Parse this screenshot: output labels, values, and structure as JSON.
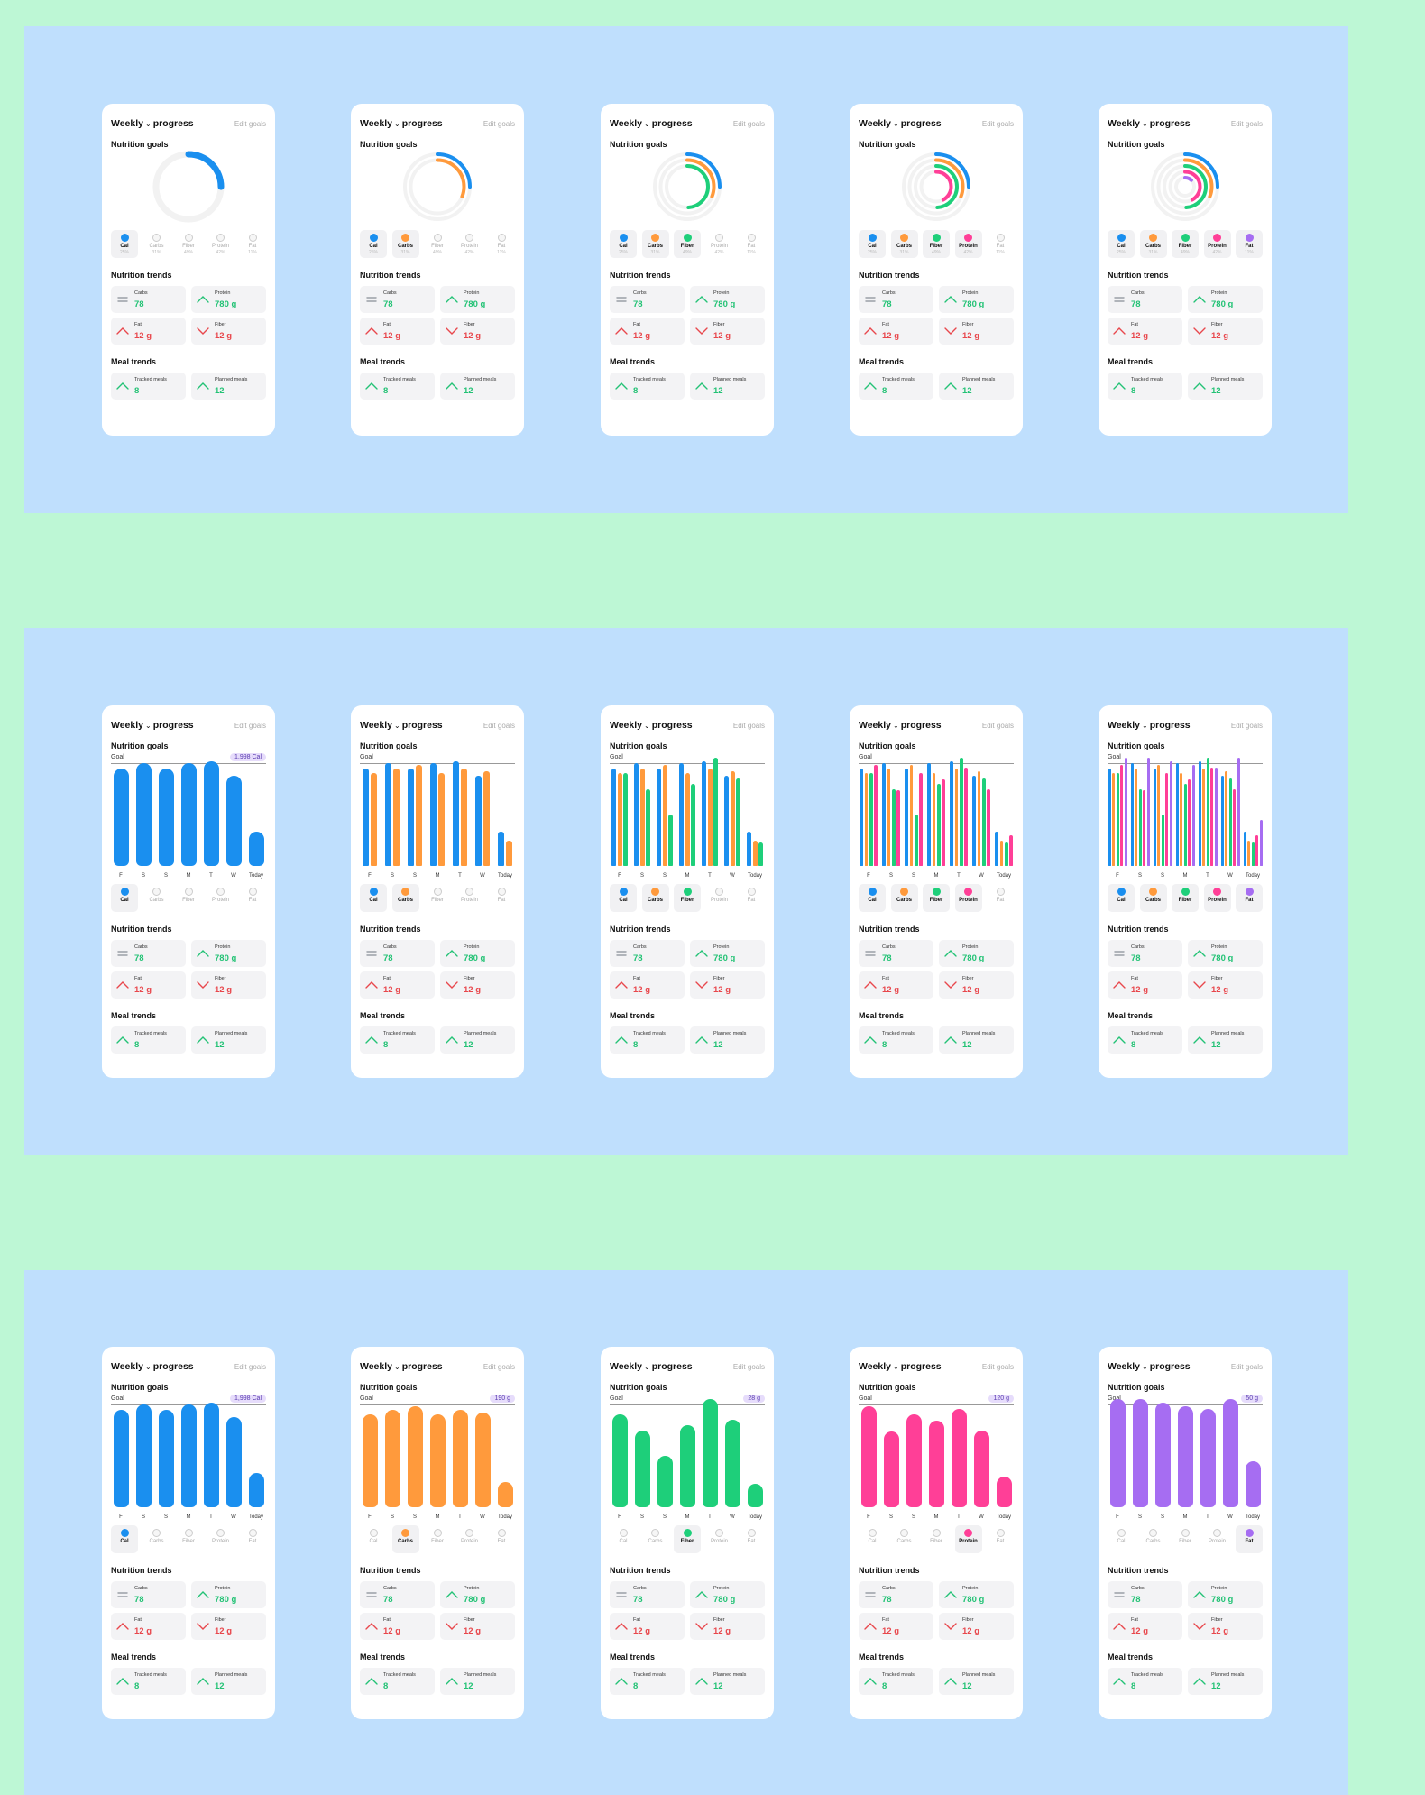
{
  "card": {
    "title_a": "Weekly",
    "title_b": "progress",
    "edit": "Edit goals",
    "nutrition_goals": "Nutrition goals",
    "nutrition_trends": "Nutrition trends",
    "meal_trends": "Meal trends",
    "goal": "Goal",
    "days": [
      "F",
      "S",
      "S",
      "M",
      "T",
      "W",
      "Today"
    ]
  },
  "nutrients": [
    {
      "name": "Cal",
      "pct": "25%",
      "color": "#1a8fef"
    },
    {
      "name": "Carbs",
      "pct": "31%",
      "color": "#ff9a3c"
    },
    {
      "name": "Fiber",
      "pct": "49%",
      "color": "#1ecf7a"
    },
    {
      "name": "Protein",
      "pct": "42%",
      "color": "#ff3f97"
    },
    {
      "name": "Fat",
      "pct": "11%",
      "color": "#a66df2"
    }
  ],
  "trends": [
    {
      "label": "Carbs",
      "value": "78",
      "trend": "flat",
      "tone": "g"
    },
    {
      "label": "Protein",
      "value": "780 g",
      "trend": "up",
      "tone": "g"
    },
    {
      "label": "Fat",
      "value": "12 g",
      "trend": "up",
      "tone": "r"
    },
    {
      "label": "Fiber",
      "value": "12 g",
      "trend": "down",
      "tone": "r"
    }
  ],
  "meals": [
    {
      "label": "Tracked meals",
      "value": "8",
      "trend": "up",
      "tone": "g"
    },
    {
      "label": "Planned meals",
      "value": "12",
      "trend": "up",
      "tone": "g"
    }
  ],
  "goal_pills": [
    "1,998 Cal",
    "190 g",
    "28 g",
    "120 g",
    "50 g"
  ],
  "chart_data": [
    {
      "type": "bar",
      "description_series": "Daily intake per nutrient (relative to goal = 1.0)",
      "categories": [
        "F",
        "S",
        "S",
        "M",
        "T",
        "W",
        "Today"
      ],
      "series": [
        {
          "name": "Cal",
          "values": [
            0.95,
            1.0,
            0.95,
            1.0,
            1.02,
            0.88,
            0.33
          ]
        },
        {
          "name": "Carbs",
          "values": [
            0.9,
            0.95,
            0.98,
            0.9,
            0.95,
            0.92,
            0.25
          ]
        },
        {
          "name": "Fiber",
          "values": [
            0.9,
            0.75,
            0.5,
            0.8,
            1.05,
            0.85,
            0.23
          ]
        },
        {
          "name": "Protein",
          "values": [
            0.98,
            0.74,
            0.9,
            0.84,
            0.96,
            0.75,
            0.3
          ]
        },
        {
          "name": "Fat",
          "values": [
            1.05,
            1.05,
            1.02,
            0.98,
            0.96,
            1.05,
            0.45
          ]
        }
      ]
    }
  ]
}
